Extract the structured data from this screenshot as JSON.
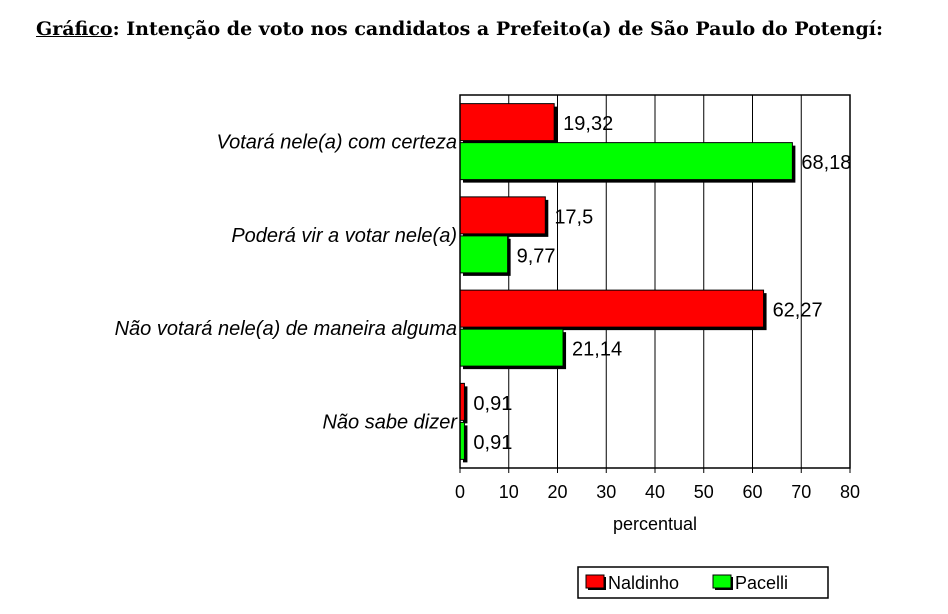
{
  "title_label": "Gráfico",
  "title_text": ":  Intenção de voto nos candidatos a Prefeito(a) de São Paulo do Potengí:",
  "chart_data": {
    "type": "bar",
    "orientation": "horizontal",
    "categories": [
      "Votará nele(a) com certeza",
      "Poderá vir a votar nele(a)",
      "Não votará nele(a) de maneira alguma",
      "Não sabe dizer"
    ],
    "series": [
      {
        "name": "Naldinho",
        "color": "#ff0000",
        "values": [
          19.32,
          17.5,
          62.27,
          0.91
        ],
        "labels": [
          "19,32",
          "17,5",
          "62,27",
          "0,91"
        ]
      },
      {
        "name": "Pacelli",
        "color": "#00ff00",
        "values": [
          68.18,
          9.77,
          21.14,
          0.91
        ],
        "labels": [
          "68,18",
          "9,77",
          "21,14",
          "0,91"
        ]
      }
    ],
    "xlabel": "percentual",
    "xlim": [
      0,
      80
    ],
    "xticks": [
      0,
      10,
      20,
      30,
      40,
      50,
      60,
      70,
      80
    ],
    "grid": "vertical",
    "legend": "bottom-right"
  }
}
